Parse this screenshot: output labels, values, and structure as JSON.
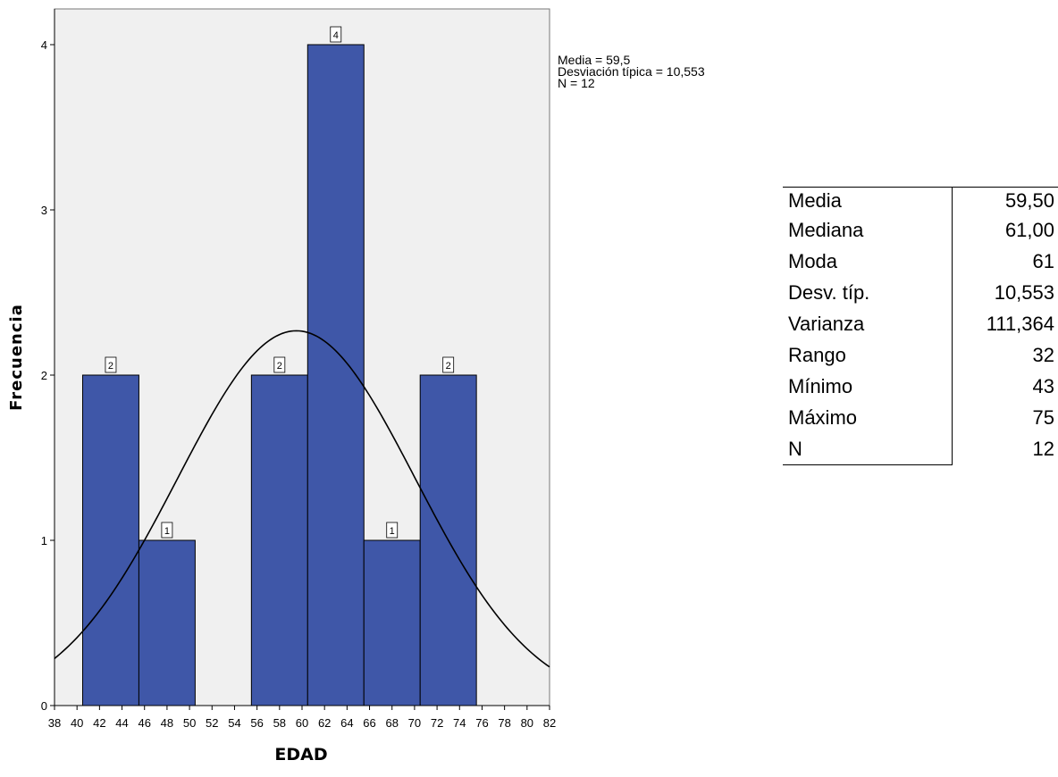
{
  "chart_data": {
    "type": "bar",
    "subtype": "histogram",
    "xlabel": "EDAD",
    "ylabel": "Frecuencia",
    "xlim": [
      38,
      82
    ],
    "ylim": [
      0,
      4.2
    ],
    "x_ticks": [
      38,
      40,
      42,
      44,
      46,
      48,
      50,
      52,
      54,
      56,
      58,
      60,
      62,
      64,
      66,
      68,
      70,
      72,
      74,
      76,
      78,
      80,
      82
    ],
    "y_ticks": [
      0,
      1,
      2,
      3,
      4
    ],
    "bins": [
      {
        "start": 40.5,
        "end": 45.5,
        "value": 2
      },
      {
        "start": 45.5,
        "end": 50.5,
        "value": 1
      },
      {
        "start": 55.5,
        "end": 60.5,
        "value": 2
      },
      {
        "start": 60.5,
        "end": 65.5,
        "value": 4
      },
      {
        "start": 65.5,
        "end": 70.5,
        "value": 1
      },
      {
        "start": 70.5,
        "end": 75.5,
        "value": 2
      }
    ],
    "normal_curve": {
      "mean": 59.5,
      "sd": 10.553,
      "n": 12,
      "bin_width": 5
    },
    "legend": [
      "Media = 59,5",
      "Desviación típica = 10,553",
      "N = 12"
    ],
    "colors": {
      "bar": "#3f57a8",
      "plot_bg": "#f0f0f0",
      "curve": "#000000"
    }
  },
  "stats_table": [
    {
      "label": "Media",
      "value": "59,50"
    },
    {
      "label": "Mediana",
      "value": "61,00"
    },
    {
      "label": "Moda",
      "value": "61"
    },
    {
      "label": "Desv. típ.",
      "value": "10,553"
    },
    {
      "label": "Varianza",
      "value": "111,364"
    },
    {
      "label": "Rango",
      "value": "32"
    },
    {
      "label": "Mínimo",
      "value": "43"
    },
    {
      "label": "Máximo",
      "value": "75"
    },
    {
      "label": "N",
      "value": "12"
    }
  ]
}
